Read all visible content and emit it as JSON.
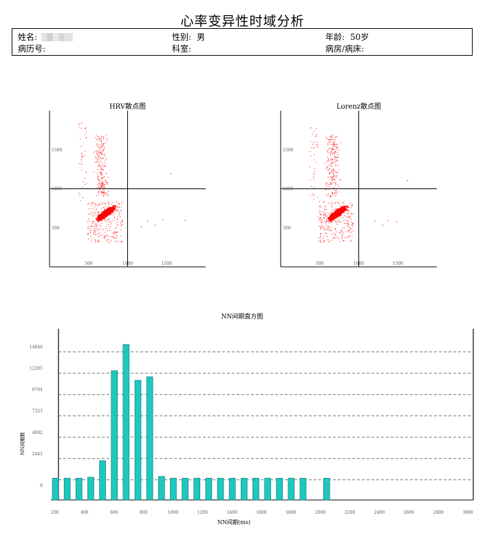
{
  "report": {
    "title": "心率变异性时域分析",
    "info": {
      "name_label": "姓名:",
      "gender_label": "性别:",
      "gender_value": "男",
      "age_label": "年龄:",
      "age_value": "50岁",
      "record_label": "病历号:",
      "department_label": "科室:",
      "ward_label": "病房/病床:"
    }
  },
  "colors": {
    "scatter": "#ff0000",
    "bar_fill": "#1ec8be",
    "bar_stroke": "#0a6f6a"
  },
  "chart_data": [
    {
      "type": "scatter",
      "title": "HRV散点图",
      "xlim": [
        0,
        2000
      ],
      "ylim": [
        0,
        2000
      ],
      "x_ticks": [
        500,
        1000,
        1500
      ],
      "y_ticks": [
        500,
        1000,
        1500
      ],
      "reference_lines": {
        "x": 1000,
        "y": 1000
      },
      "cluster": {
        "x_range": [
          450,
          900
        ],
        "y_range": [
          450,
          850
        ]
      },
      "outliers": [
        [
          1550,
          1200
        ],
        [
          1250,
          590
        ],
        [
          1450,
          610
        ],
        [
          1350,
          540
        ],
        [
          1730,
          600
        ],
        [
          1170,
          520
        ]
      ]
    },
    {
      "type": "scatter",
      "title": "Lorenz散点图",
      "xlim": [
        0,
        2000
      ],
      "ylim": [
        0,
        2000
      ],
      "x_ticks": [
        500,
        1000,
        1500
      ],
      "y_ticks": [
        500,
        1000,
        1500
      ],
      "reference_lines": {
        "x": 1000,
        "y": 1000
      },
      "cluster": {
        "x_range": [
          450,
          900
        ],
        "y_range": [
          450,
          850
        ]
      },
      "outliers": [
        [
          1620,
          1110
        ],
        [
          1200,
          590
        ],
        [
          1370,
          600
        ],
        [
          1480,
          580
        ],
        [
          1300,
          540
        ]
      ]
    },
    {
      "type": "bar",
      "title": "NN间期直方图",
      "xlabel": "NN间期(ms)",
      "ylabel": "NN间期数",
      "xlim": [
        200,
        3000
      ],
      "x_ticks": [
        200,
        400,
        600,
        800,
        1000,
        1200,
        1400,
        1600,
        1800,
        2000,
        2200,
        2400,
        2600,
        2800,
        3000
      ],
      "y_ticks": [
        0,
        2441,
        4882,
        7323,
        9764,
        12205,
        14646
      ],
      "ylim": [
        -2300,
        17300
      ],
      "x": [
        200,
        280,
        360,
        440,
        520,
        600,
        680,
        760,
        840,
        920,
        1000,
        1080,
        1160,
        1240,
        1320,
        1400,
        1480,
        1560,
        1640,
        1720,
        1800,
        1880,
        2040
      ],
      "values": [
        200,
        200,
        200,
        300,
        2200,
        12500,
        15500,
        11400,
        11800,
        400,
        200,
        200,
        200,
        200,
        200,
        200,
        200,
        200,
        200,
        200,
        200,
        200,
        200
      ]
    }
  ]
}
